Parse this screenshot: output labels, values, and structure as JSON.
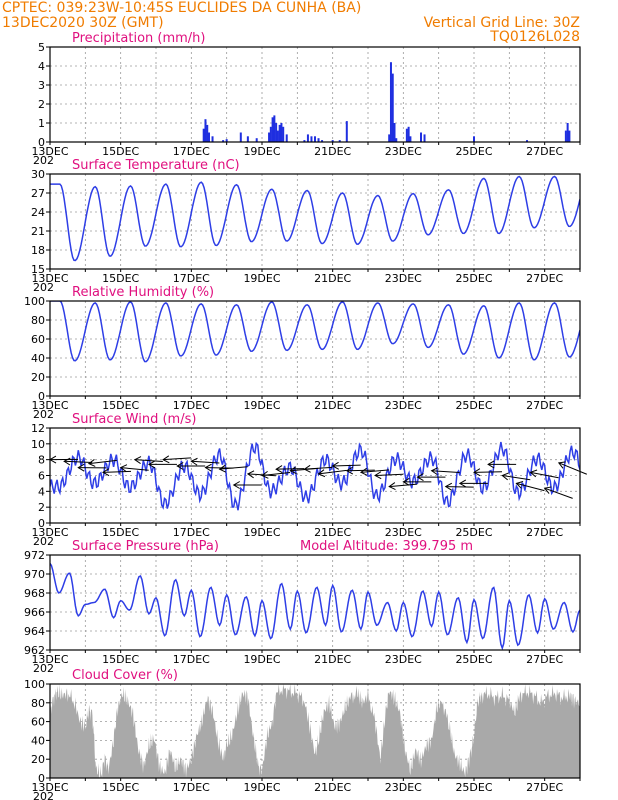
{
  "header": {
    "line1": "CPTEC:   039:23W-10:45S   EUCLIDES DA CUNHA (BA)",
    "line2_left": "13DEC2020 30Z (GMT)",
    "line2_right": "Vertical Grid Line: 30Z",
    "line3_right": "TQ0126L028"
  },
  "colors": {
    "header": "#f07c00",
    "panel_title": "#e0107f",
    "line": "#2e3ee6",
    "precip_bar": "#1f2fe0",
    "cloud_fill": "#a9a9a9",
    "wind_arrow": "#000000"
  },
  "x_ticks": [
    "13DEC",
    "15DEC",
    "17DEC",
    "19DEC",
    "21DEC",
    "23DEC",
    "25DEC",
    "27DEC"
  ],
  "year_fragment": "202",
  "chart_data": [
    {
      "id": "precip",
      "type": "bar",
      "title": "Precipitation (mm/h)",
      "ylim": [
        0,
        5
      ],
      "yticks": [
        0,
        1,
        2,
        3,
        4,
        5
      ],
      "x_unit": "days since 13DEC 00Z",
      "bars": [
        [
          4.35,
          0.7
        ],
        [
          4.4,
          1.2
        ],
        [
          4.45,
          0.9
        ],
        [
          4.5,
          0.5
        ],
        [
          4.6,
          0.3
        ],
        [
          4.9,
          0.1
        ],
        [
          5.0,
          0.15
        ],
        [
          5.4,
          0.5
        ],
        [
          5.6,
          0.3
        ],
        [
          5.85,
          0.2
        ],
        [
          6.2,
          0.5
        ],
        [
          6.25,
          0.8
        ],
        [
          6.3,
          1.3
        ],
        [
          6.35,
          1.4
        ],
        [
          6.4,
          1.0
        ],
        [
          6.45,
          0.6
        ],
        [
          6.5,
          0.9
        ],
        [
          6.55,
          1.0
        ],
        [
          6.6,
          0.8
        ],
        [
          6.7,
          0.4
        ],
        [
          7.2,
          0.1
        ],
        [
          7.3,
          0.4
        ],
        [
          7.4,
          0.3
        ],
        [
          7.5,
          0.3
        ],
        [
          7.6,
          0.2
        ],
        [
          7.7,
          0.1
        ],
        [
          8.0,
          0.1
        ],
        [
          8.2,
          0.1
        ],
        [
          8.4,
          1.1
        ],
        [
          9.6,
          0.4
        ],
        [
          9.65,
          4.2
        ],
        [
          9.7,
          3.6
        ],
        [
          9.75,
          1.0
        ],
        [
          9.8,
          0.2
        ],
        [
          10.1,
          0.7
        ],
        [
          10.15,
          0.8
        ],
        [
          10.2,
          0.3
        ],
        [
          10.5,
          0.5
        ],
        [
          10.6,
          0.4
        ],
        [
          12.0,
          0.3
        ],
        [
          13.5,
          0.1
        ],
        [
          14.6,
          0.6
        ],
        [
          14.65,
          1.0
        ],
        [
          14.7,
          0.6
        ]
      ]
    },
    {
      "id": "temp",
      "type": "line",
      "title": "Surface Temperature (nC)",
      "ylim": [
        15,
        30
      ],
      "yticks": [
        15,
        18,
        21,
        24,
        27,
        30
      ],
      "days": [
        [
          16.3,
          28.4
        ],
        [
          17.0,
          28.0
        ],
        [
          18.6,
          28.1
        ],
        [
          18.5,
          28.4
        ],
        [
          18.7,
          28.7
        ],
        [
          19.3,
          28.3
        ],
        [
          19.4,
          27.6
        ],
        [
          19.0,
          27.4
        ],
        [
          18.9,
          27.0
        ],
        [
          19.4,
          26.6
        ],
        [
          20.4,
          26.9
        ],
        [
          20.6,
          27.5
        ],
        [
          20.6,
          29.3
        ],
        [
          21.5,
          29.6
        ],
        [
          21.7,
          29.6
        ],
        [
          20.8,
          29.9
        ],
        [
          21.6,
          29.2
        ]
      ]
    },
    {
      "id": "rh",
      "type": "line",
      "title": "Relative Humidity (%)",
      "ylim": [
        0,
        100
      ],
      "yticks": [
        0,
        20,
        40,
        60,
        80,
        100
      ],
      "days": [
        [
          100,
          37
        ],
        [
          98,
          38
        ],
        [
          99,
          36
        ],
        [
          98,
          42
        ],
        [
          97,
          43
        ],
        [
          96,
          47
        ],
        [
          99,
          48
        ],
        [
          96,
          49
        ],
        [
          99,
          49
        ],
        [
          98,
          55
        ],
        [
          97,
          51
        ],
        [
          96,
          44
        ],
        [
          95,
          40
        ],
        [
          98,
          38
        ],
        [
          98,
          41
        ],
        [
          95,
          46
        ],
        [
          94,
          42
        ]
      ]
    },
    {
      "id": "wind",
      "type": "line",
      "title": "Surface Wind (m/s)",
      "ylim": [
        0,
        12
      ],
      "yticks": [
        0,
        2,
        4,
        6,
        8,
        10,
        12
      ],
      "days": [
        [
          8.3,
          4.6
        ],
        [
          8.0,
          5.0
        ],
        [
          7.6,
          4.5
        ],
        [
          7.2,
          2.4
        ],
        [
          8.6,
          3.6
        ],
        [
          9.6,
          2.2
        ],
        [
          7.0,
          4.0
        ],
        [
          8.0,
          3.2
        ],
        [
          9.2,
          5.0
        ],
        [
          8.1,
          3.4
        ],
        [
          8.2,
          5.2
        ],
        [
          8.6,
          2.6
        ],
        [
          9.4,
          4.4
        ],
        [
          8.1,
          3.8
        ],
        [
          9.0,
          4.4
        ],
        [
          10.4,
          5.0
        ],
        [
          9.2,
          4.8
        ]
      ],
      "arrows": [
        [
          0.0,
          8.0,
          7.8,
          1.5
        ],
        [
          0.4,
          7.8,
          6.8,
          2.0
        ],
        [
          0.8,
          7.0,
          6.5,
          1.7
        ],
        [
          1.1,
          7.5,
          6.6,
          0.5
        ],
        [
          1.5,
          6.4,
          8.2,
          1.3
        ],
        [
          2.0,
          7.0,
          6.4,
          2.5
        ],
        [
          2.4,
          8.0,
          7.6,
          2.2
        ],
        [
          2.8,
          7.4,
          6.2,
          1.6
        ],
        [
          3.2,
          8.0,
          7.0,
          1.0
        ],
        [
          3.6,
          7.2,
          8.6,
          1.6
        ],
        [
          4.0,
          7.8,
          6.5,
          2.2
        ],
        [
          4.4,
          7.0,
          7.2,
          1.8
        ],
        [
          4.8,
          6.8,
          7.5,
          0.8
        ],
        [
          5.2,
          4.8,
          8.0,
          1.6
        ],
        [
          5.6,
          6.2,
          8.2,
          2.2
        ],
        [
          6.0,
          6.0,
          8.4,
          0.6
        ],
        [
          6.4,
          6.8,
          8.0,
          1.4
        ],
        [
          6.8,
          6.6,
          8.1,
          0.8
        ],
        [
          7.2,
          6.8,
          8.2,
          1.0
        ],
        [
          7.6,
          6.2,
          7.6,
          0.4
        ],
        [
          8.0,
          7.2,
          7.4,
          1.3
        ],
        [
          8.4,
          6.6,
          9.0,
          1.4
        ],
        [
          8.8,
          6.4,
          8.0,
          0.8
        ],
        [
          9.2,
          6.0,
          8.8,
          1.2
        ],
        [
          9.6,
          4.6,
          7.6,
          0.8
        ],
        [
          10.0,
          5.2,
          8.8,
          1.6
        ],
        [
          10.4,
          5.8,
          7.0,
          1.6
        ],
        [
          10.8,
          6.6,
          8.2,
          2.2
        ],
        [
          11.2,
          4.6,
          8.0,
          1.8
        ],
        [
          11.6,
          5.0,
          7.6,
          1.6
        ],
        [
          12.0,
          6.4,
          8.8,
          1.4
        ],
        [
          12.4,
          7.4,
          8.4,
          1.6
        ],
        [
          12.8,
          6.0,
          7.0,
          3.0
        ],
        [
          13.2,
          5.0,
          8.8,
          4.0
        ],
        [
          13.6,
          6.4,
          7.2,
          3.4
        ],
        [
          14.0,
          4.4,
          6.4,
          5.0
        ],
        [
          14.4,
          7.6,
          5.6,
          5.4
        ]
      ]
    },
    {
      "id": "pres",
      "type": "line",
      "title": "Surface Pressure (hPa)",
      "annotation": "Model Altitude: 399.795  m",
      "ylim": [
        962,
        972
      ],
      "yticks": [
        962,
        964,
        966,
        968,
        970,
        972
      ],
      "days": [
        [
          971.1,
          968.0,
          970.1,
          965.6
        ],
        [
          966.8,
          967.0,
          968.4,
          965.4
        ],
        [
          967.2,
          966.2,
          969.8,
          965.8
        ],
        [
          967.5,
          963.5,
          969.4,
          965.6
        ],
        [
          968.3,
          963.4,
          968.6,
          964.6
        ],
        [
          967.8,
          963.6,
          967.6,
          963.5
        ],
        [
          967.2,
          963.2,
          969.0,
          964.2
        ],
        [
          968.2,
          963.8,
          968.6,
          964.6
        ],
        [
          968.8,
          963.9,
          968.3,
          964.2
        ],
        [
          968.1,
          964.6,
          967.0,
          964.0
        ],
        [
          967.0,
          963.4,
          968.2,
          964.5
        ],
        [
          968.1,
          963.6,
          967.5,
          962.8
        ],
        [
          967.3,
          963.2,
          968.6,
          962.2
        ],
        [
          967.2,
          962.5,
          967.8,
          963.8
        ],
        [
          967.4,
          964.2,
          967.0,
          963.9
        ],
        [
          966.2,
          963.0,
          967.4,
          962.8
        ],
        [
          965.8,
          962.2,
          966.9,
          964.4
        ]
      ]
    },
    {
      "id": "cloud",
      "type": "area",
      "title": "Cloud Cover (%)",
      "ylim": [
        0,
        100
      ],
      "yticks": [
        0,
        20,
        40,
        60,
        80,
        100
      ],
      "x_unit": "days since 13DEC 00Z",
      "points": [
        [
          0.0,
          70
        ],
        [
          0.1,
          85
        ],
        [
          0.2,
          92
        ],
        [
          0.35,
          88
        ],
        [
          0.5,
          90
        ],
        [
          0.7,
          80
        ],
        [
          0.85,
          60
        ],
        [
          1.0,
          55
        ],
        [
          1.1,
          72
        ],
        [
          1.2,
          68
        ],
        [
          1.3,
          10
        ],
        [
          1.45,
          3
        ],
        [
          1.55,
          22
        ],
        [
          1.65,
          8
        ],
        [
          1.8,
          40
        ],
        [
          1.9,
          72
        ],
        [
          2.05,
          90
        ],
        [
          2.2,
          82
        ],
        [
          2.35,
          68
        ],
        [
          2.5,
          30
        ],
        [
          2.65,
          12
        ],
        [
          2.8,
          35
        ],
        [
          2.95,
          42
        ],
        [
          3.1,
          12
        ],
        [
          3.25,
          5
        ],
        [
          3.4,
          30
        ],
        [
          3.55,
          10
        ],
        [
          3.7,
          20
        ],
        [
          3.85,
          8
        ],
        [
          4.0,
          20
        ],
        [
          4.15,
          45
        ],
        [
          4.3,
          60
        ],
        [
          4.45,
          85
        ],
        [
          4.6,
          72
        ],
        [
          4.75,
          40
        ],
        [
          4.9,
          20
        ],
        [
          5.0,
          35
        ],
        [
          5.15,
          45
        ],
        [
          5.3,
          70
        ],
        [
          5.45,
          90
        ],
        [
          5.6,
          86
        ],
        [
          5.75,
          45
        ],
        [
          5.9,
          12
        ],
        [
          6.0,
          8
        ],
        [
          6.15,
          45
        ],
        [
          6.3,
          60
        ],
        [
          6.4,
          90
        ],
        [
          6.6,
          95
        ],
        [
          6.8,
          92
        ],
        [
          7.0,
          90
        ],
        [
          7.2,
          82
        ],
        [
          7.35,
          55
        ],
        [
          7.5,
          25
        ],
        [
          7.6,
          40
        ],
        [
          7.75,
          70
        ],
        [
          7.9,
          80
        ],
        [
          8.05,
          55
        ],
        [
          8.2,
          58
        ],
        [
          8.35,
          75
        ],
        [
          8.5,
          85
        ],
        [
          8.7,
          90
        ],
        [
          8.85,
          80
        ],
        [
          9.0,
          88
        ],
        [
          9.2,
          60
        ],
        [
          9.35,
          20
        ],
        [
          9.5,
          70
        ],
        [
          9.6,
          92
        ],
        [
          9.75,
          85
        ],
        [
          9.9,
          70
        ],
        [
          10.05,
          30
        ],
        [
          10.2,
          8
        ],
        [
          10.35,
          30
        ],
        [
          10.5,
          18
        ],
        [
          10.65,
          35
        ],
        [
          10.8,
          40
        ],
        [
          10.95,
          75
        ],
        [
          11.1,
          82
        ],
        [
          11.3,
          55
        ],
        [
          11.45,
          25
        ],
        [
          11.6,
          15
        ],
        [
          11.75,
          5
        ],
        [
          11.9,
          25
        ],
        [
          12.0,
          45
        ],
        [
          12.1,
          80
        ],
        [
          12.2,
          88
        ],
        [
          12.4,
          90
        ],
        [
          12.6,
          85
        ],
        [
          12.8,
          88
        ],
        [
          13.0,
          82
        ],
        [
          13.15,
          70
        ],
        [
          13.3,
          88
        ],
        [
          13.5,
          92
        ],
        [
          13.7,
          88
        ],
        [
          13.9,
          80
        ],
        [
          14.1,
          88
        ],
        [
          14.3,
          90
        ],
        [
          14.5,
          85
        ],
        [
          14.7,
          88
        ],
        [
          14.85,
          82
        ],
        [
          15.0,
          80
        ]
      ]
    }
  ]
}
